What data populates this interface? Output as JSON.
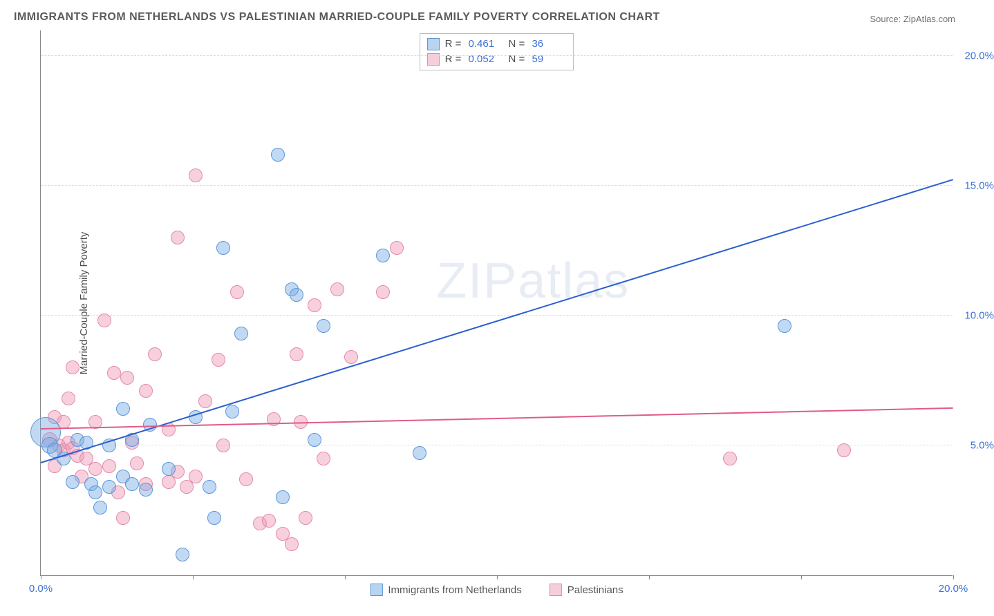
{
  "title": "IMMIGRANTS FROM NETHERLANDS VS PALESTINIAN MARRIED-COUPLE FAMILY POVERTY CORRELATION CHART",
  "source": "Source: ZipAtlas.com",
  "watermark_zip": "ZIP",
  "watermark_atlas": "atlas",
  "chart": {
    "type": "scatter",
    "y_label": "Married-Couple Family Poverty",
    "x_domain": [
      0,
      20
    ],
    "y_domain": [
      0,
      21
    ],
    "background_color": "#ffffff",
    "grid_color": "#dcdcdc",
    "axis_color": "#888888",
    "tick_label_color": "#3b6fd6",
    "y_ticks": [
      {
        "v": 5,
        "label": "5.0%"
      },
      {
        "v": 10,
        "label": "10.0%"
      },
      {
        "v": 15,
        "label": "15.0%"
      },
      {
        "v": 20,
        "label": "20.0%"
      }
    ],
    "x_ticks_major": [
      0,
      3.33,
      6.67,
      10,
      13.33,
      16.67,
      20
    ],
    "x_labels": [
      {
        "v": 0,
        "label": "0.0%"
      },
      {
        "v": 20,
        "label": "20.0%"
      }
    ],
    "series": [
      {
        "name": "Immigrants from Netherlands",
        "color_fill": "rgba(120,170,230,0.45)",
        "color_stroke": "#5a96d6",
        "swatch_fill": "#b9d4f0",
        "swatch_border": "#5a96d6",
        "marker_radius_base": 9,
        "R": "0.461",
        "N": "36",
        "trend": {
          "x1": 0,
          "y1": 4.3,
          "x2": 20,
          "y2": 15.2,
          "color": "#2b5fd0",
          "width": 2
        },
        "points": [
          [
            0.1,
            5.5,
            22
          ],
          [
            0.2,
            5.0,
            12
          ],
          [
            0.3,
            4.8,
            11
          ],
          [
            0.5,
            4.5,
            10
          ],
          [
            0.7,
            3.6,
            10
          ],
          [
            0.8,
            5.2,
            10
          ],
          [
            1.0,
            5.1,
            10
          ],
          [
            1.1,
            3.5,
            10
          ],
          [
            1.2,
            3.2,
            10
          ],
          [
            1.3,
            2.6,
            10
          ],
          [
            1.5,
            5.0,
            10
          ],
          [
            1.5,
            3.4,
            10
          ],
          [
            1.8,
            6.4,
            10
          ],
          [
            1.8,
            3.8,
            10
          ],
          [
            2.0,
            3.5,
            10
          ],
          [
            2.0,
            5.2,
            10
          ],
          [
            2.3,
            3.3,
            10
          ],
          [
            2.4,
            5.8,
            10
          ],
          [
            2.8,
            4.1,
            10
          ],
          [
            3.1,
            0.8,
            10
          ],
          [
            3.4,
            6.1,
            10
          ],
          [
            3.7,
            3.4,
            10
          ],
          [
            3.8,
            2.2,
            10
          ],
          [
            4.0,
            12.6,
            10
          ],
          [
            4.2,
            6.3,
            10
          ],
          [
            4.4,
            9.3,
            10
          ],
          [
            5.2,
            16.2,
            10
          ],
          [
            5.3,
            3.0,
            10
          ],
          [
            5.5,
            11.0,
            10
          ],
          [
            5.6,
            10.8,
            10
          ],
          [
            6.0,
            5.2,
            10
          ],
          [
            6.2,
            9.6,
            10
          ],
          [
            7.5,
            12.3,
            10
          ],
          [
            8.3,
            4.7,
            10
          ],
          [
            16.3,
            9.6,
            10
          ]
        ]
      },
      {
        "name": "Palestinians",
        "color_fill": "rgba(240,150,180,0.45)",
        "color_stroke": "#e28aa8",
        "swatch_fill": "#f6cedb",
        "swatch_border": "#e28aa8",
        "marker_radius_base": 9,
        "R": "0.052",
        "N": "59",
        "trend": {
          "x1": 0,
          "y1": 5.6,
          "x2": 20,
          "y2": 6.4,
          "color": "#e05a8a",
          "width": 2
        },
        "points": [
          [
            0.2,
            5.2,
            11
          ],
          [
            0.3,
            6.1,
            10
          ],
          [
            0.3,
            4.2,
            10
          ],
          [
            0.4,
            5.0,
            10
          ],
          [
            0.5,
            4.8,
            10
          ],
          [
            0.5,
            5.9,
            10
          ],
          [
            0.6,
            5.1,
            10
          ],
          [
            0.6,
            6.8,
            10
          ],
          [
            0.7,
            4.9,
            10
          ],
          [
            0.7,
            8.0,
            10
          ],
          [
            0.8,
            4.6,
            10
          ],
          [
            0.9,
            3.8,
            10
          ],
          [
            1.0,
            4.5,
            10
          ],
          [
            1.2,
            5.9,
            10
          ],
          [
            1.2,
            4.1,
            10
          ],
          [
            1.4,
            9.8,
            10
          ],
          [
            1.5,
            4.2,
            10
          ],
          [
            1.6,
            7.8,
            10
          ],
          [
            1.7,
            3.2,
            10
          ],
          [
            1.8,
            2.2,
            10
          ],
          [
            1.9,
            7.6,
            10
          ],
          [
            2.0,
            5.1,
            10
          ],
          [
            2.1,
            4.3,
            10
          ],
          [
            2.3,
            7.1,
            10
          ],
          [
            2.3,
            3.5,
            10
          ],
          [
            2.5,
            8.5,
            10
          ],
          [
            2.8,
            3.6,
            10
          ],
          [
            2.8,
            5.6,
            10
          ],
          [
            3.0,
            4.0,
            10
          ],
          [
            3.0,
            13.0,
            10
          ],
          [
            3.2,
            3.4,
            10
          ],
          [
            3.4,
            15.4,
            10
          ],
          [
            3.4,
            3.8,
            10
          ],
          [
            3.6,
            6.7,
            10
          ],
          [
            3.9,
            8.3,
            10
          ],
          [
            4.0,
            5.0,
            10
          ],
          [
            4.3,
            10.9,
            10
          ],
          [
            4.5,
            3.7,
            10
          ],
          [
            4.8,
            2.0,
            10
          ],
          [
            5.0,
            2.1,
            10
          ],
          [
            5.1,
            6.0,
            10
          ],
          [
            5.3,
            1.6,
            10
          ],
          [
            5.5,
            1.2,
            10
          ],
          [
            5.6,
            8.5,
            10
          ],
          [
            5.7,
            5.9,
            10
          ],
          [
            5.8,
            2.2,
            10
          ],
          [
            6.0,
            10.4,
            10
          ],
          [
            6.2,
            4.5,
            10
          ],
          [
            6.5,
            11.0,
            10
          ],
          [
            6.8,
            8.4,
            10
          ],
          [
            7.5,
            10.9,
            10
          ],
          [
            7.8,
            12.6,
            10
          ],
          [
            15.1,
            4.5,
            10
          ],
          [
            17.6,
            4.8,
            10
          ]
        ]
      }
    ]
  }
}
